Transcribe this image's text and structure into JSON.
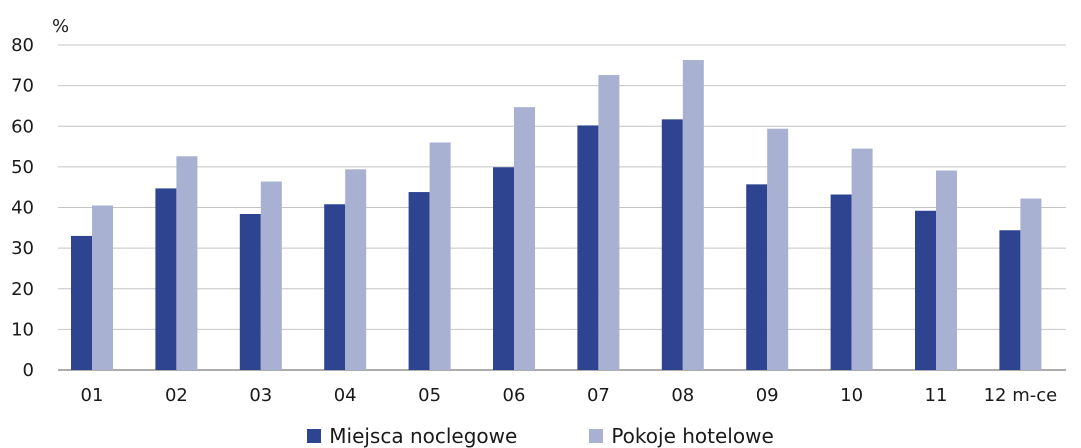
{
  "chart_data": {
    "type": "bar",
    "ylabel": "%",
    "ylim": [
      0,
      80
    ],
    "yticks": [
      0,
      10,
      20,
      30,
      40,
      50,
      60,
      70,
      80
    ],
    "grid": true,
    "legend_position": "bottom-center",
    "categories": [
      "01",
      "02",
      "03",
      "04",
      "05",
      "06",
      "07",
      "08",
      "09",
      "10",
      "11",
      "12 m-ce"
    ],
    "series": [
      {
        "name": "Miejsca noclegowe",
        "color": "#2e4491",
        "values": [
          33.0,
          44.7,
          38.4,
          40.8,
          43.8,
          49.9,
          60.2,
          61.7,
          45.7,
          43.2,
          39.2,
          34.4
        ]
      },
      {
        "name": "Pokoje hotelowe",
        "color": "#a8b1d1",
        "values": [
          40.5,
          52.6,
          46.4,
          49.4,
          56.0,
          64.7,
          72.6,
          76.3,
          59.4,
          54.5,
          49.1,
          42.2
        ]
      }
    ]
  }
}
